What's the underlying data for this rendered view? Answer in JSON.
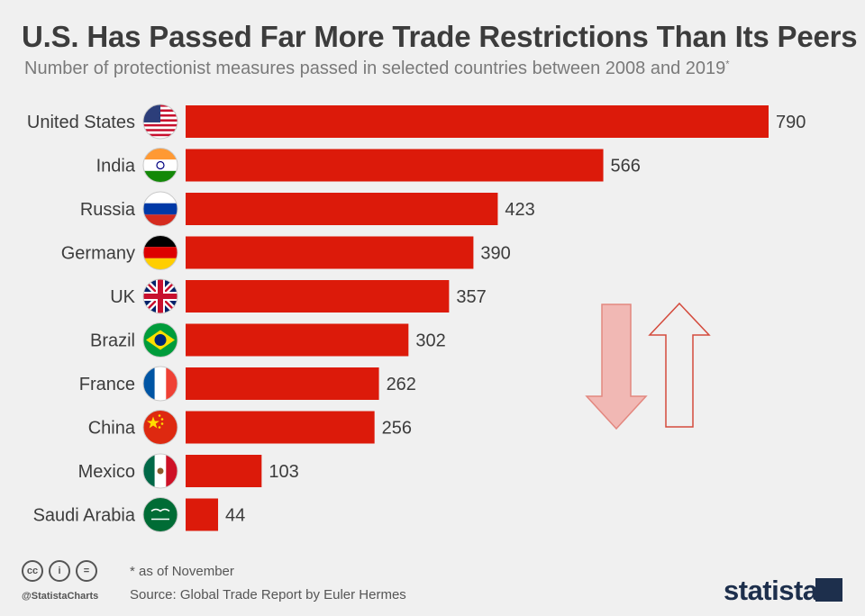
{
  "chart_data": {
    "type": "bar",
    "orientation": "horizontal",
    "title": "U.S. Has Passed Far More Trade Restrictions Than Its Peers",
    "subtitle": "Number of protectionist measures passed in selected countries between 2008 and 2019",
    "subtitle_mark": "*",
    "categories": [
      "United States",
      "India",
      "Russia",
      "Germany",
      "UK",
      "Brazil",
      "France",
      "China",
      "Mexico",
      "Saudi Arabia"
    ],
    "values": [
      790,
      566,
      423,
      390,
      357,
      302,
      262,
      256,
      103,
      44
    ],
    "flag_icons": [
      "us-flag-icon",
      "india-flag-icon",
      "russia-flag-icon",
      "germany-flag-icon",
      "uk-flag-icon",
      "brazil-flag-icon",
      "france-flag-icon",
      "china-flag-icon",
      "mexico-flag-icon",
      "saudi-arabia-flag-icon"
    ],
    "bar_color": "#dc1a0a",
    "xlim": [
      0,
      790
    ]
  },
  "footer": {
    "note": "* as of November",
    "source": "Source: Global Trade Report by Euler Hermes",
    "handle": "@StatistaCharts",
    "brand": "statista"
  }
}
